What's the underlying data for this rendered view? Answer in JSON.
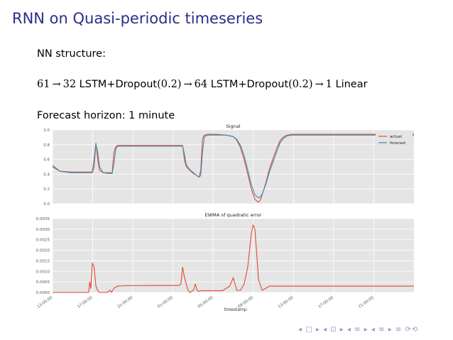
{
  "slide": {
    "title": "RNN on Quasi-periodic timeseries",
    "nn_label": "NN structure:",
    "arch": [
      {
        "kind": "math",
        "text": "61"
      },
      {
        "kind": "arrow",
        "text": "→"
      },
      {
        "kind": "math",
        "text": "32"
      },
      {
        "kind": "text",
        "text": " LSTM+Dropout"
      },
      {
        "kind": "math",
        "text": "(0.2)"
      },
      {
        "kind": "arrow",
        "text": "→"
      },
      {
        "kind": "math",
        "text": "64"
      },
      {
        "kind": "text",
        "text": " LSTM+Dropout"
      },
      {
        "kind": "math",
        "text": "(0.2)"
      },
      {
        "kind": "arrow",
        "text": "→"
      },
      {
        "kind": "math",
        "text": "1"
      },
      {
        "kind": "text",
        "text": " Linear"
      }
    ],
    "forecast_horizon": "Forecast horizon: 1 minute",
    "nav_symbols": "◂ □ ▸ ◂ ⊡ ▸ ◂ ≡ ▸ ◂ ≡ ▸ ≡ ⟳⟲"
  },
  "chart_data": [
    {
      "type": "line",
      "title": "Signal",
      "xlabel": "",
      "ylabel": "",
      "ylim": [
        0,
        1.0
      ],
      "yticks": [
        "0.0",
        "0.2",
        "0.4",
        "0.6",
        "0.8",
        "1.0"
      ],
      "ytick_values": [
        0,
        0.2,
        0.4,
        0.6,
        0.8,
        1.0
      ],
      "grid": true,
      "legend": "top-right",
      "x": [
        0,
        0.02,
        0.05,
        0.08,
        0.1,
        0.11,
        0.115,
        0.12,
        0.125,
        0.13,
        0.14,
        0.155,
        0.165,
        0.17,
        0.175,
        0.18,
        0.19,
        0.22,
        0.28,
        0.35,
        0.36,
        0.365,
        0.37,
        0.38,
        0.39,
        0.4,
        0.405,
        0.41,
        0.415,
        0.42,
        0.43,
        0.45,
        0.48,
        0.5,
        0.51,
        0.52,
        0.53,
        0.54,
        0.55,
        0.56,
        0.57,
        0.575,
        0.58,
        0.59,
        0.6,
        0.62,
        0.63,
        0.64,
        0.65,
        0.66,
        0.68,
        0.72,
        0.8,
        0.9,
        1.0
      ],
      "series": [
        {
          "name": "actual",
          "color": "#e24a33",
          "values": [
            0.52,
            0.44,
            0.43,
            0.43,
            0.43,
            0.43,
            0.6,
            0.82,
            0.6,
            0.45,
            0.42,
            0.42,
            0.42,
            0.7,
            0.77,
            0.79,
            0.79,
            0.79,
            0.79,
            0.79,
            0.79,
            0.59,
            0.5,
            0.45,
            0.41,
            0.38,
            0.36,
            0.45,
            0.88,
            0.93,
            0.94,
            0.94,
            0.93,
            0.91,
            0.86,
            0.76,
            0.6,
            0.4,
            0.2,
            0.06,
            0.02,
            0.05,
            0.12,
            0.28,
            0.47,
            0.75,
            0.86,
            0.91,
            0.93,
            0.94,
            0.94,
            0.94,
            0.94,
            0.94,
            0.94
          ]
        },
        {
          "name": "forecast",
          "color": "#348abd",
          "values": [
            0.5,
            0.44,
            0.42,
            0.42,
            0.42,
            0.42,
            0.5,
            0.8,
            0.7,
            0.5,
            0.42,
            0.41,
            0.41,
            0.55,
            0.74,
            0.78,
            0.78,
            0.78,
            0.78,
            0.78,
            0.78,
            0.67,
            0.53,
            0.46,
            0.42,
            0.38,
            0.36,
            0.38,
            0.7,
            0.91,
            0.93,
            0.93,
            0.93,
            0.91,
            0.87,
            0.79,
            0.65,
            0.46,
            0.26,
            0.12,
            0.08,
            0.09,
            0.13,
            0.26,
            0.43,
            0.7,
            0.83,
            0.89,
            0.92,
            0.93,
            0.93,
            0.93,
            0.93,
            0.93,
            0.93
          ]
        }
      ]
    },
    {
      "type": "line",
      "title": "EWMA of quadratic error",
      "xlabel": "timestamp",
      "ylabel": "",
      "ylim": [
        0,
        0.0035
      ],
      "yticks": [
        "0.0000",
        "0.0005",
        "0.0010",
        "0.0015",
        "0.0020",
        "0.0025",
        "0.0030",
        "0.0035"
      ],
      "ytick_values": [
        0,
        0.0005,
        0.001,
        0.0015,
        0.002,
        0.0025,
        0.003,
        0.0035
      ],
      "grid": true,
      "legend": "none",
      "categories": [
        "13:00:00",
        "17:00:00",
        "21:00:00",
        "01:00:00",
        "05:00:00",
        "09:00:00",
        "13:00:00",
        "17:00:00",
        "21:00:00"
      ],
      "x": [
        0,
        0.02,
        0.05,
        0.09,
        0.1,
        0.103,
        0.106,
        0.11,
        0.115,
        0.12,
        0.125,
        0.13,
        0.135,
        0.14,
        0.15,
        0.16,
        0.163,
        0.17,
        0.18,
        0.2,
        0.28,
        0.35,
        0.355,
        0.36,
        0.365,
        0.37,
        0.375,
        0.38,
        0.39,
        0.395,
        0.4,
        0.405,
        0.41,
        0.43,
        0.47,
        0.49,
        0.5,
        0.505,
        0.51,
        0.52,
        0.53,
        0.54,
        0.55,
        0.555,
        0.56,
        0.565,
        0.57,
        0.58,
        0.59,
        0.6,
        0.62,
        0.64,
        0.66,
        0.7,
        0.8,
        0.9,
        1.0
      ],
      "series": [
        {
          "name": "",
          "color": "#e24a33",
          "values": [
            0.0,
            0.0,
            0.0,
            0.0,
            0.0,
            0.0005,
            0.0002,
            0.0014,
            0.0012,
            0.0003,
            0.0001,
            0.0,
            0.0,
            0.0,
            0.0,
            0.0001,
            0.0,
            0.0002,
            0.0003,
            0.00032,
            0.00033,
            0.00033,
            0.0004,
            0.0012,
            0.0007,
            0.0004,
            0.0001,
            0.0,
            0.0001,
            0.0004,
            0.0001,
            5e-05,
            8e-05,
            8e-05,
            8e-05,
            0.0003,
            0.0007,
            0.0004,
            0.0001,
            0.0001,
            0.0004,
            0.0012,
            0.0028,
            0.0032,
            0.003,
            0.0018,
            0.0006,
            0.0001,
            0.0002,
            0.0003,
            0.0003,
            0.0003,
            0.0003,
            0.0003,
            0.0003,
            0.0003,
            0.0003
          ]
        }
      ]
    }
  ]
}
